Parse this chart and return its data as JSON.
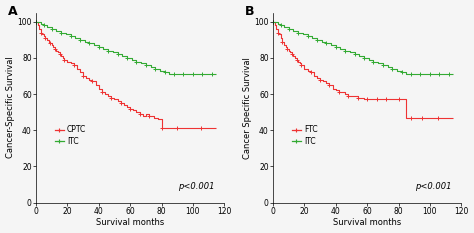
{
  "panel_A": {
    "label": "A",
    "red_label": "CPTC",
    "green_label": "ITC",
    "ylabel": "Cancer-Specific Survival",
    "xlabel": "Survival months",
    "xlim": [
      0,
      120
    ],
    "ylim": [
      0,
      105
    ],
    "yticks": [
      0,
      20,
      40,
      60,
      80,
      100
    ],
    "xticks": [
      0,
      20,
      40,
      60,
      80,
      100,
      120
    ],
    "pvalue": "p<0.001",
    "red_x": [
      0,
      1,
      2,
      3,
      4,
      5,
      6,
      7,
      8,
      9,
      10,
      11,
      12,
      13,
      14,
      15,
      16,
      17,
      18,
      20,
      22,
      24,
      26,
      28,
      30,
      32,
      34,
      36,
      38,
      40,
      42,
      44,
      46,
      48,
      50,
      52,
      54,
      56,
      58,
      60,
      62,
      64,
      66,
      68,
      70,
      72,
      75,
      78,
      80,
      82,
      85,
      90,
      95,
      100,
      105,
      110,
      115
    ],
    "red_y": [
      100,
      98,
      96,
      94,
      93,
      92,
      91,
      90,
      89,
      88,
      87,
      86,
      85,
      84,
      83,
      82,
      81,
      80,
      79,
      78,
      77,
      76,
      74,
      72,
      70,
      69,
      68,
      67,
      65,
      63,
      61,
      60,
      59,
      58,
      57,
      56,
      55,
      54,
      53,
      52,
      51,
      50,
      49,
      48,
      49,
      48,
      47,
      46,
      41,
      41,
      41,
      41,
      41,
      41,
      41,
      41,
      41
    ],
    "green_x": [
      0,
      3,
      5,
      7,
      10,
      13,
      16,
      19,
      22,
      25,
      28,
      31,
      34,
      37,
      40,
      43,
      46,
      49,
      52,
      55,
      58,
      61,
      64,
      67,
      70,
      73,
      76,
      79,
      82,
      85,
      88,
      91,
      94,
      97,
      100,
      103,
      106,
      109,
      112,
      115
    ],
    "green_y": [
      100,
      99,
      98,
      97,
      96,
      95,
      94,
      93,
      92,
      91,
      90,
      89,
      88,
      87,
      86,
      85,
      84,
      83,
      82,
      81,
      80,
      79,
      78,
      77,
      76,
      75,
      74,
      73,
      72,
      71,
      71,
      71,
      71,
      71,
      71,
      71,
      71,
      71,
      71,
      71
    ]
  },
  "panel_B": {
    "label": "B",
    "red_label": "FTC",
    "green_label": "ITC",
    "ylabel": "Cancer Specific Survival",
    "xlabel": "Survival months",
    "xlim": [
      0,
      120
    ],
    "ylim": [
      0,
      105
    ],
    "yticks": [
      0,
      20,
      40,
      60,
      80,
      100
    ],
    "xticks": [
      0,
      20,
      40,
      60,
      80,
      100,
      120
    ],
    "pvalue": "p<0.001",
    "red_x": [
      0,
      1,
      2,
      3,
      4,
      5,
      6,
      7,
      8,
      9,
      10,
      11,
      12,
      13,
      14,
      15,
      16,
      17,
      18,
      20,
      22,
      24,
      26,
      28,
      30,
      32,
      34,
      36,
      38,
      40,
      42,
      44,
      46,
      48,
      50,
      52,
      54,
      56,
      58,
      60,
      62,
      64,
      66,
      68,
      70,
      72,
      75,
      78,
      80,
      82,
      85,
      88,
      90,
      92,
      95,
      98,
      100,
      105,
      110,
      115
    ],
    "red_y": [
      100,
      98,
      96,
      94,
      93,
      91,
      89,
      87,
      86,
      85,
      84,
      83,
      82,
      81,
      80,
      79,
      78,
      77,
      76,
      74,
      73,
      72,
      70,
      69,
      68,
      67,
      66,
      65,
      63,
      62,
      61,
      61,
      60,
      59,
      59,
      59,
      58,
      58,
      57,
      57,
      57,
      57,
      57,
      57,
      57,
      57,
      57,
      57,
      57,
      57,
      47,
      47,
      47,
      47,
      47,
      47,
      47,
      47,
      47,
      47
    ],
    "green_x": [
      0,
      3,
      5,
      7,
      10,
      13,
      16,
      19,
      22,
      25,
      28,
      31,
      34,
      37,
      40,
      43,
      46,
      49,
      52,
      55,
      58,
      61,
      64,
      67,
      70,
      73,
      76,
      79,
      82,
      85,
      88,
      91,
      94,
      97,
      100,
      103,
      106,
      109,
      112,
      115
    ],
    "green_y": [
      100,
      99,
      98,
      97,
      96,
      95,
      94,
      93,
      92,
      91,
      90,
      89,
      88,
      87,
      86,
      85,
      84,
      83,
      82,
      81,
      80,
      79,
      78,
      77,
      76,
      75,
      74,
      73,
      72,
      71,
      71,
      71,
      71,
      71,
      71,
      71,
      71,
      71,
      71,
      71
    ]
  },
  "red_color": "#EE3333",
  "green_color": "#33AA33",
  "bg_color": "#F5F5F5",
  "tick_fontsize": 5.5,
  "label_fontsize": 6,
  "pvalue_fontsize": 6,
  "legend_fontsize": 5.5,
  "panel_label_fontsize": 9
}
